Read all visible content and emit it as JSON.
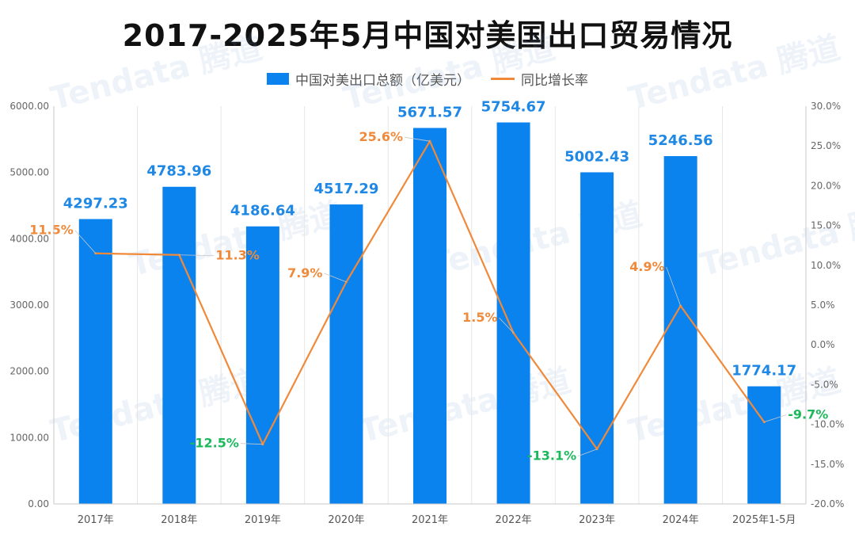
{
  "title": "2017-2025年5月中国对美国出口贸易情况",
  "watermark": "Tendata 腾道",
  "legend": {
    "bar_label": "中国对美出口总额（亿美元）",
    "line_label": "同比增长率"
  },
  "colors": {
    "bar": "#0a83ee",
    "line": "#f08a3a",
    "positive_label": "#f08a3a",
    "negative_label": "#1cb85c",
    "bar_label": "#1f88e5"
  },
  "chart_data": {
    "type": "bar",
    "title": "2017-2025年5月中国对美国出口贸易情况",
    "categories": [
      "2017年",
      "2018年",
      "2019年",
      "2020年",
      "2021年",
      "2022年",
      "2023年",
      "2024年",
      "2025年1-5月"
    ],
    "series": [
      {
        "name": "中国对美出口总额（亿美元）",
        "type": "bar",
        "axis": "left",
        "values": [
          4297.23,
          4783.96,
          4186.64,
          4517.29,
          5671.57,
          5754.67,
          5002.43,
          5246.56,
          1774.17
        ],
        "labels": [
          "4297.23",
          "4783.96",
          "4186.64",
          "4517.29",
          "5671.57",
          "5754.67",
          "5002.43",
          "5246.56",
          "1774.17"
        ]
      },
      {
        "name": "同比增长率",
        "type": "line",
        "axis": "right",
        "values": [
          11.5,
          11.3,
          -12.5,
          7.9,
          25.6,
          1.5,
          -13.1,
          4.9,
          -9.7
        ],
        "labels": [
          "11.5%",
          "11.3%",
          "-12.5%",
          "7.9%",
          "25.6%",
          "1.5%",
          "-13.1%",
          "4.9%",
          "-9.7%"
        ]
      }
    ],
    "y_left": {
      "min": 0,
      "max": 6000,
      "ticks": [
        "0.00",
        "1000.00",
        "2000.00",
        "3000.00",
        "4000.00",
        "5000.00",
        "6000.00"
      ]
    },
    "y_right": {
      "min": -20,
      "max": 30,
      "ticks": [
        "-20.0%",
        "-15.0%",
        "-10.0%",
        "-5.0%",
        "0.0%",
        "5.0%",
        "10.0%",
        "15.0%",
        "20.0%",
        "25.0%",
        "30.0%"
      ]
    },
    "grid": "vertical",
    "legend_position": "top-center"
  }
}
